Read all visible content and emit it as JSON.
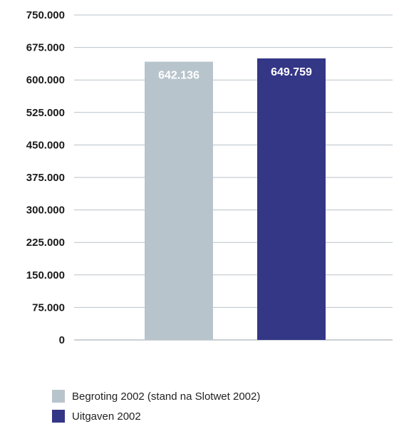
{
  "chart_data": {
    "type": "bar",
    "title": "",
    "xlabel": "",
    "ylabel": "",
    "ylim": [
      0,
      750000
    ],
    "yticks": [
      0,
      75000,
      150000,
      225000,
      300000,
      375000,
      450000,
      525000,
      600000,
      675000,
      750000
    ],
    "ytick_labels": [
      "0",
      "75.000",
      "150.000",
      "225.000",
      "300.000",
      "375.000",
      "450.000",
      "525.000",
      "600.000",
      "675.000",
      "750.000"
    ],
    "grid": true,
    "legend_position": "bottom-left",
    "series": [
      {
        "name": "Begroting 2002 (stand na Slotwet 2002)",
        "value": 642136,
        "value_label": "642.136",
        "color": "#b8c4cc"
      },
      {
        "name": "Uitgaven 2002",
        "value": 649759,
        "value_label": "649.759",
        "color": "#343686"
      }
    ]
  }
}
